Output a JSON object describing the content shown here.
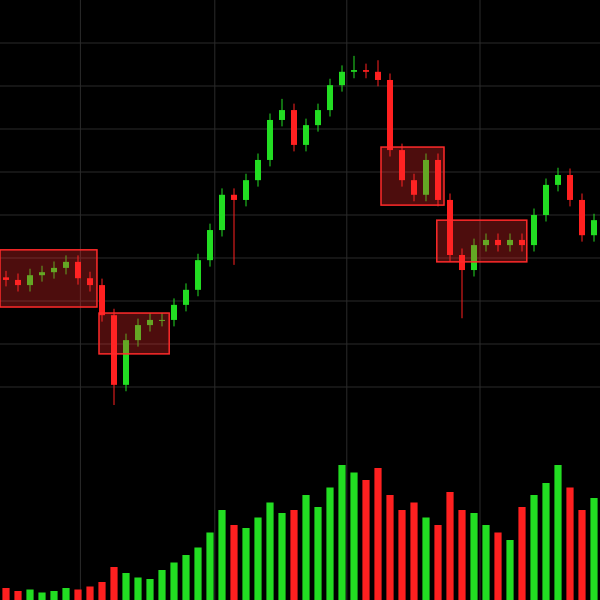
{
  "chart_data": {
    "type": "candlestick",
    "open": [
      35.5,
      34.9,
      33.7,
      36.0,
      36.7,
      37.7,
      39.1,
      35.3,
      33.7,
      26.7,
      10.5,
      20.9,
      24.4,
      25.6,
      25.6,
      29.1,
      32.6,
      39.5,
      46.5,
      54.7,
      53.5,
      58.1,
      62.8,
      72.1,
      74.4,
      66.3,
      70.9,
      74.4,
      80.2,
      83.3,
      83.7,
      83.3,
      81.4,
      65.1,
      58.1,
      54.7,
      62.8,
      53.5,
      40.7,
      37.2,
      43.0,
      44.2,
      43.0,
      44.2,
      43.0,
      50.0,
      57.0,
      59.3,
      53.5,
      45.3
    ],
    "high": [
      37.0,
      36.4,
      37.5,
      38.2,
      39.2,
      40.6,
      40.6,
      36.8,
      35.2,
      28.2,
      22.4,
      25.9,
      27.1,
      27.1,
      30.6,
      34.1,
      41.0,
      48.0,
      56.2,
      56.2,
      59.6,
      64.3,
      73.6,
      77.0,
      75.9,
      72.4,
      75.9,
      81.7,
      84.8,
      87.0,
      85.2,
      86.0,
      82.9,
      66.6,
      59.6,
      64.3,
      64.3,
      55.0,
      42.2,
      44.5,
      45.7,
      45.7,
      45.7,
      45.7,
      51.5,
      58.5,
      61.0,
      60.8,
      55.0,
      50.3
    ],
    "low": [
      33.4,
      32.2,
      32.2,
      34.5,
      35.2,
      36.2,
      33.8,
      32.2,
      25.2,
      5.8,
      9.0,
      19.4,
      22.9,
      24.1,
      24.1,
      27.6,
      31.1,
      38.0,
      45.0,
      38.4,
      52.0,
      56.6,
      61.3,
      70.6,
      64.8,
      64.8,
      69.4,
      72.9,
      78.7,
      81.8,
      81.8,
      79.9,
      63.6,
      56.6,
      53.2,
      53.2,
      52.0,
      39.2,
      26.0,
      35.7,
      41.5,
      41.5,
      41.5,
      41.5,
      41.5,
      48.5,
      55.5,
      52.0,
      43.8,
      43.8
    ],
    "close": [
      34.9,
      33.7,
      36.0,
      36.7,
      37.7,
      39.1,
      35.3,
      33.7,
      26.7,
      10.5,
      20.9,
      24.4,
      25.6,
      25.6,
      29.1,
      32.6,
      39.5,
      46.5,
      54.7,
      53.5,
      58.1,
      62.8,
      72.1,
      74.4,
      66.3,
      70.9,
      74.4,
      80.2,
      83.3,
      83.7,
      83.3,
      81.4,
      65.1,
      58.1,
      54.7,
      62.8,
      53.5,
      40.7,
      37.2,
      43.0,
      44.2,
      43.0,
      44.2,
      43.0,
      50.0,
      57.0,
      59.3,
      53.5,
      45.3,
      48.8
    ],
    "up_color": "#22dd22",
    "down_color": "#ff2020",
    "xlim": [
      -0.5,
      49.5
    ],
    "ylim": [
      0,
      100
    ],
    "xticks": [
      6.2,
      17.4,
      28.4,
      39.5
    ],
    "yticks": [
      10,
      20,
      30,
      40,
      50,
      60,
      70,
      80,
      90
    ],
    "grid": true,
    "zones": [
      {
        "x": [
          -0.5,
          7.58
        ],
        "y": [
          28.6,
          41.9
        ]
      },
      {
        "x": [
          7.75,
          13.6
        ],
        "y": [
          17.7,
          27.2
        ]
      },
      {
        "x": [
          31.25,
          36.5
        ],
        "y": [
          52.3,
          65.8
        ]
      },
      {
        "x": [
          35.9,
          43.4
        ],
        "y": [
          39.1,
          48.8
        ]
      }
    ],
    "zone_color": "#ff2a2a",
    "volume": {
      "values": [
        8,
        6,
        7,
        5,
        6,
        8,
        7,
        9,
        12,
        22,
        18,
        15,
        14,
        20,
        25,
        30,
        35,
        45,
        60,
        50,
        48,
        55,
        65,
        58,
        60,
        70,
        62,
        75,
        90,
        85,
        80,
        88,
        70,
        60,
        65,
        55,
        50,
        72,
        60,
        58,
        50,
        45,
        40,
        62,
        70,
        78,
        90,
        75,
        60,
        68
      ],
      "ylim": [
        0,
        100
      ]
    }
  }
}
